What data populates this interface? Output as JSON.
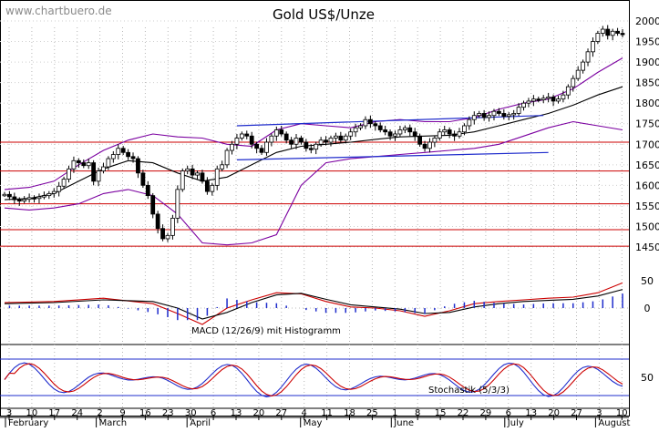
{
  "watermark": "www.chartbuero.de",
  "chart_data": {
    "type": "line",
    "title": "Gold US$/Unze",
    "grid": true,
    "price_panel": {
      "y_axis_ticks": [
        2000,
        1950,
        1900,
        1850,
        1800,
        1750,
        1700,
        1650,
        1600,
        1550,
        1500,
        1450
      ],
      "ylim": [
        1430,
        2020
      ],
      "support_resistance_levels": [
        1705,
        1635,
        1555,
        1492,
        1452
      ],
      "series": [
        {
          "type": "candlestick",
          "x": [
            0,
            1,
            2,
            3,
            4,
            5,
            6,
            7,
            8,
            9,
            10,
            11,
            12,
            13,
            14,
            15,
            16,
            17,
            18,
            19,
            20,
            21,
            22,
            23,
            24,
            25,
            26,
            27,
            28,
            29,
            30,
            31,
            32,
            33,
            34,
            35,
            36,
            37,
            38,
            39,
            40,
            41,
            42,
            43,
            44,
            45,
            46,
            47,
            48,
            49,
            50,
            51,
            52,
            53,
            54,
            55,
            56,
            57,
            58,
            59,
            60,
            61,
            62,
            63,
            64,
            65,
            66,
            67,
            68,
            69,
            70,
            71,
            72,
            73,
            74,
            75,
            76,
            77,
            78,
            79,
            80,
            81,
            82,
            83,
            84,
            85,
            86,
            87,
            88,
            89,
            90,
            91,
            92,
            93,
            94,
            95,
            96,
            97,
            98,
            99,
            100,
            101,
            102,
            103,
            104,
            105,
            106,
            107,
            108,
            109,
            110,
            111,
            112,
            113,
            114,
            115,
            116,
            117,
            118,
            119,
            120,
            121,
            122,
            123,
            124,
            125
          ],
          "close": [
            1578,
            1572,
            1565,
            1562,
            1566,
            1570,
            1568,
            1572,
            1575,
            1580,
            1585,
            1598,
            1615,
            1640,
            1660,
            1655,
            1648,
            1655,
            1610,
            1635,
            1645,
            1665,
            1675,
            1690,
            1680,
            1670,
            1665,
            1630,
            1600,
            1575,
            1530,
            1495,
            1470,
            1478,
            1520,
            1590,
            1635,
            1640,
            1625,
            1630,
            1610,
            1585,
            1600,
            1640,
            1650,
            1685,
            1700,
            1715,
            1725,
            1720,
            1700,
            1690,
            1680,
            1705,
            1720,
            1735,
            1725,
            1710,
            1700,
            1715,
            1705,
            1690,
            1688,
            1700,
            1710,
            1705,
            1715,
            1720,
            1710,
            1720,
            1730,
            1740,
            1745,
            1760,
            1750,
            1745,
            1735,
            1730,
            1720,
            1725,
            1735,
            1740,
            1730,
            1720,
            1700,
            1690,
            1705,
            1715,
            1730,
            1735,
            1725,
            1720,
            1730,
            1745,
            1760,
            1770,
            1775,
            1765,
            1770,
            1780,
            1775,
            1768,
            1772,
            1775,
            1790,
            1800,
            1805,
            1810,
            1808,
            1812,
            1815,
            1805,
            1810,
            1820,
            1840,
            1860,
            1880,
            1900,
            1925,
            1950,
            1970,
            1980,
            1965,
            1975,
            1970,
            1968
          ]
        },
        {
          "name": "",
          "type": "line",
          "x": [
            0,
            5,
            10,
            15,
            20,
            25,
            30,
            35,
            40,
            45,
            50,
            55,
            60,
            65,
            70,
            75,
            80,
            85,
            90,
            95,
            100,
            105,
            110,
            115,
            120,
            125
          ],
          "values": [
            1565,
            1568,
            1580,
            1610,
            1640,
            1660,
            1655,
            1630,
            1610,
            1620,
            1650,
            1680,
            1695,
            1700,
            1705,
            1712,
            1718,
            1720,
            1722,
            1730,
            1745,
            1760,
            1775,
            1795,
            1820,
            1840
          ]
        },
        {
          "name": "",
          "type": "line",
          "x": [
            0,
            5,
            10,
            15,
            20,
            25,
            30,
            35,
            40,
            45,
            50,
            55,
            60,
            65,
            70,
            75,
            80,
            85,
            90,
            95,
            100,
            105,
            110,
            115,
            120,
            125
          ],
          "values": [
            1590,
            1595,
            1610,
            1650,
            1685,
            1710,
            1725,
            1718,
            1715,
            1700,
            1695,
            1735,
            1750,
            1745,
            1740,
            1755,
            1760,
            1755,
            1755,
            1765,
            1785,
            1800,
            1810,
            1835,
            1875,
            1910
          ]
        },
        {
          "name": "",
          "type": "line",
          "x": [
            0,
            5,
            10,
            15,
            20,
            25,
            30,
            35,
            40,
            45,
            50,
            55,
            60,
            65,
            70,
            75,
            80,
            85,
            90,
            95,
            100,
            105,
            110,
            115,
            120,
            125
          ],
          "values": [
            1545,
            1540,
            1545,
            1555,
            1580,
            1590,
            1575,
            1530,
            1460,
            1455,
            1460,
            1480,
            1600,
            1655,
            1665,
            1670,
            1675,
            1680,
            1685,
            1690,
            1700,
            1720,
            1740,
            1755,
            1745,
            1735
          ]
        }
      ],
      "trend_channel": {
        "upper": {
          "x": [
            47,
            109
          ],
          "y": [
            1745,
            1770
          ]
        },
        "lower": {
          "x": [
            47,
            110
          ],
          "y": [
            1662,
            1680
          ]
        }
      }
    },
    "macd_panel": {
      "label": "MACD (12/26/9) mit Histogramm",
      "y_axis_ticks": [
        50,
        0
      ],
      "series": [
        {
          "name": "",
          "x": [
            0,
            10,
            20,
            30,
            35,
            40,
            45,
            50,
            55,
            60,
            65,
            70,
            75,
            80,
            85,
            90,
            95,
            100,
            105,
            110,
            115,
            120,
            125
          ],
          "values": [
            10,
            12,
            18,
            8,
            -10,
            -30,
            0,
            15,
            28,
            26,
            12,
            2,
            0,
            -5,
            -15,
            -5,
            8,
            12,
            15,
            18,
            20,
            28,
            46
          ]
        },
        {
          "name": "",
          "x": [
            0,
            10,
            20,
            30,
            35,
            40,
            45,
            50,
            55,
            60,
            65,
            70,
            75,
            80,
            85,
            90,
            95,
            100,
            105,
            110,
            115,
            120,
            125
          ],
          "values": [
            8,
            10,
            15,
            12,
            0,
            -20,
            -8,
            10,
            24,
            27,
            16,
            6,
            2,
            -2,
            -10,
            -8,
            2,
            8,
            12,
            14,
            16,
            22,
            34
          ]
        }
      ]
    },
    "stochastic_panel": {
      "label": "Stochastik (5/3/3)",
      "y_axis_ticks": [
        50
      ]
    },
    "x_axis": {
      "day_ticks": [
        "3",
        "10",
        "17",
        "24",
        "2",
        "9",
        "16",
        "23",
        "30",
        "6",
        "13",
        "20",
        "27",
        "4",
        "11",
        "18",
        "25",
        "1",
        "8",
        "15",
        "22",
        "29",
        "6",
        "13",
        "20",
        "27",
        "3",
        "10"
      ],
      "months": [
        "February",
        "March",
        "April",
        "May",
        "June",
        "July",
        "August"
      ]
    }
  }
}
